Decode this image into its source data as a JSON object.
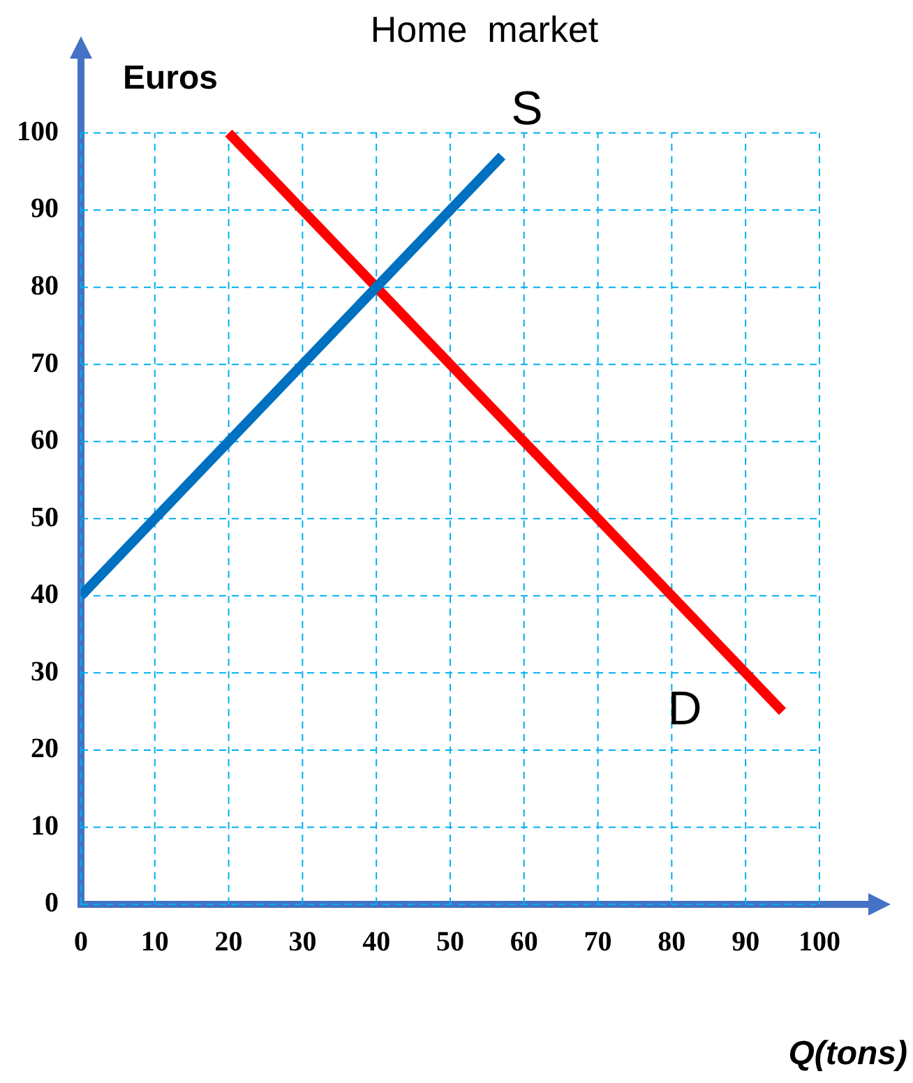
{
  "chart_data": {
    "type": "line",
    "title": "Home  market",
    "xlabel": "Q(tons)",
    "ylabel": "Euros",
    "xlim": [
      0,
      107
    ],
    "ylim": [
      0,
      110
    ],
    "xticks": [
      0,
      10,
      20,
      30,
      40,
      50,
      60,
      70,
      80,
      90,
      100
    ],
    "yticks": [
      0,
      10,
      20,
      30,
      40,
      50,
      60,
      70,
      80,
      90,
      100
    ],
    "grid": true,
    "legend": false,
    "marker": "none",
    "line_style": "solid",
    "series": [
      {
        "name": "S",
        "color": "#0070c0",
        "x": [
          0,
          57
        ],
        "values": [
          40,
          97
        ]
      },
      {
        "name": "D",
        "color": "#ff0000",
        "x": [
          20,
          95
        ],
        "values": [
          100,
          25
        ]
      }
    ]
  }
}
